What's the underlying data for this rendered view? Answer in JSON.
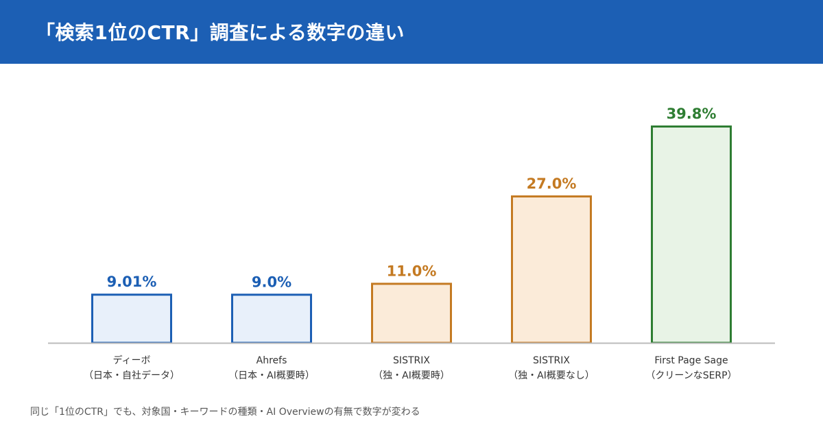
{
  "header": {
    "title": "「検索1位のCTR」調査による数字の違い"
  },
  "footnote": "同じ「1位のCTR」でも、対象国・キーワードの種類・AI Overviewの有無で数字が変わる",
  "colors": {
    "header_bg": "#1c5fb4",
    "blue": "#1c5fb4",
    "blue_fill": "#e8f0fa",
    "orange": "#c47a22",
    "orange_fill": "#fbebd9",
    "green": "#2e7d32",
    "green_fill": "#e8f3e6",
    "axis": "#bbbbbb"
  },
  "chart_data": {
    "type": "bar",
    "categories": [
      "ディーボ",
      "Ahrefs",
      "SISTRIX",
      "SISTRIX",
      "First Page Sage"
    ],
    "sublabels": [
      "（日本・自社データ）",
      "（日本・AI概要時）",
      "（独・AI概要時）",
      "（独・AI概要なし）",
      "（クリーンなSERP）"
    ],
    "values": [
      9.01,
      9.0,
      11.0,
      27.0,
      39.8
    ],
    "value_labels": [
      "9.01%",
      "9.0%",
      "11.0%",
      "27.0%",
      "39.8%"
    ],
    "color_groups": [
      "blue",
      "blue",
      "orange",
      "orange",
      "green"
    ],
    "ylim": [
      0,
      39.8
    ],
    "grid": false,
    "xlabel": "",
    "ylabel": ""
  }
}
